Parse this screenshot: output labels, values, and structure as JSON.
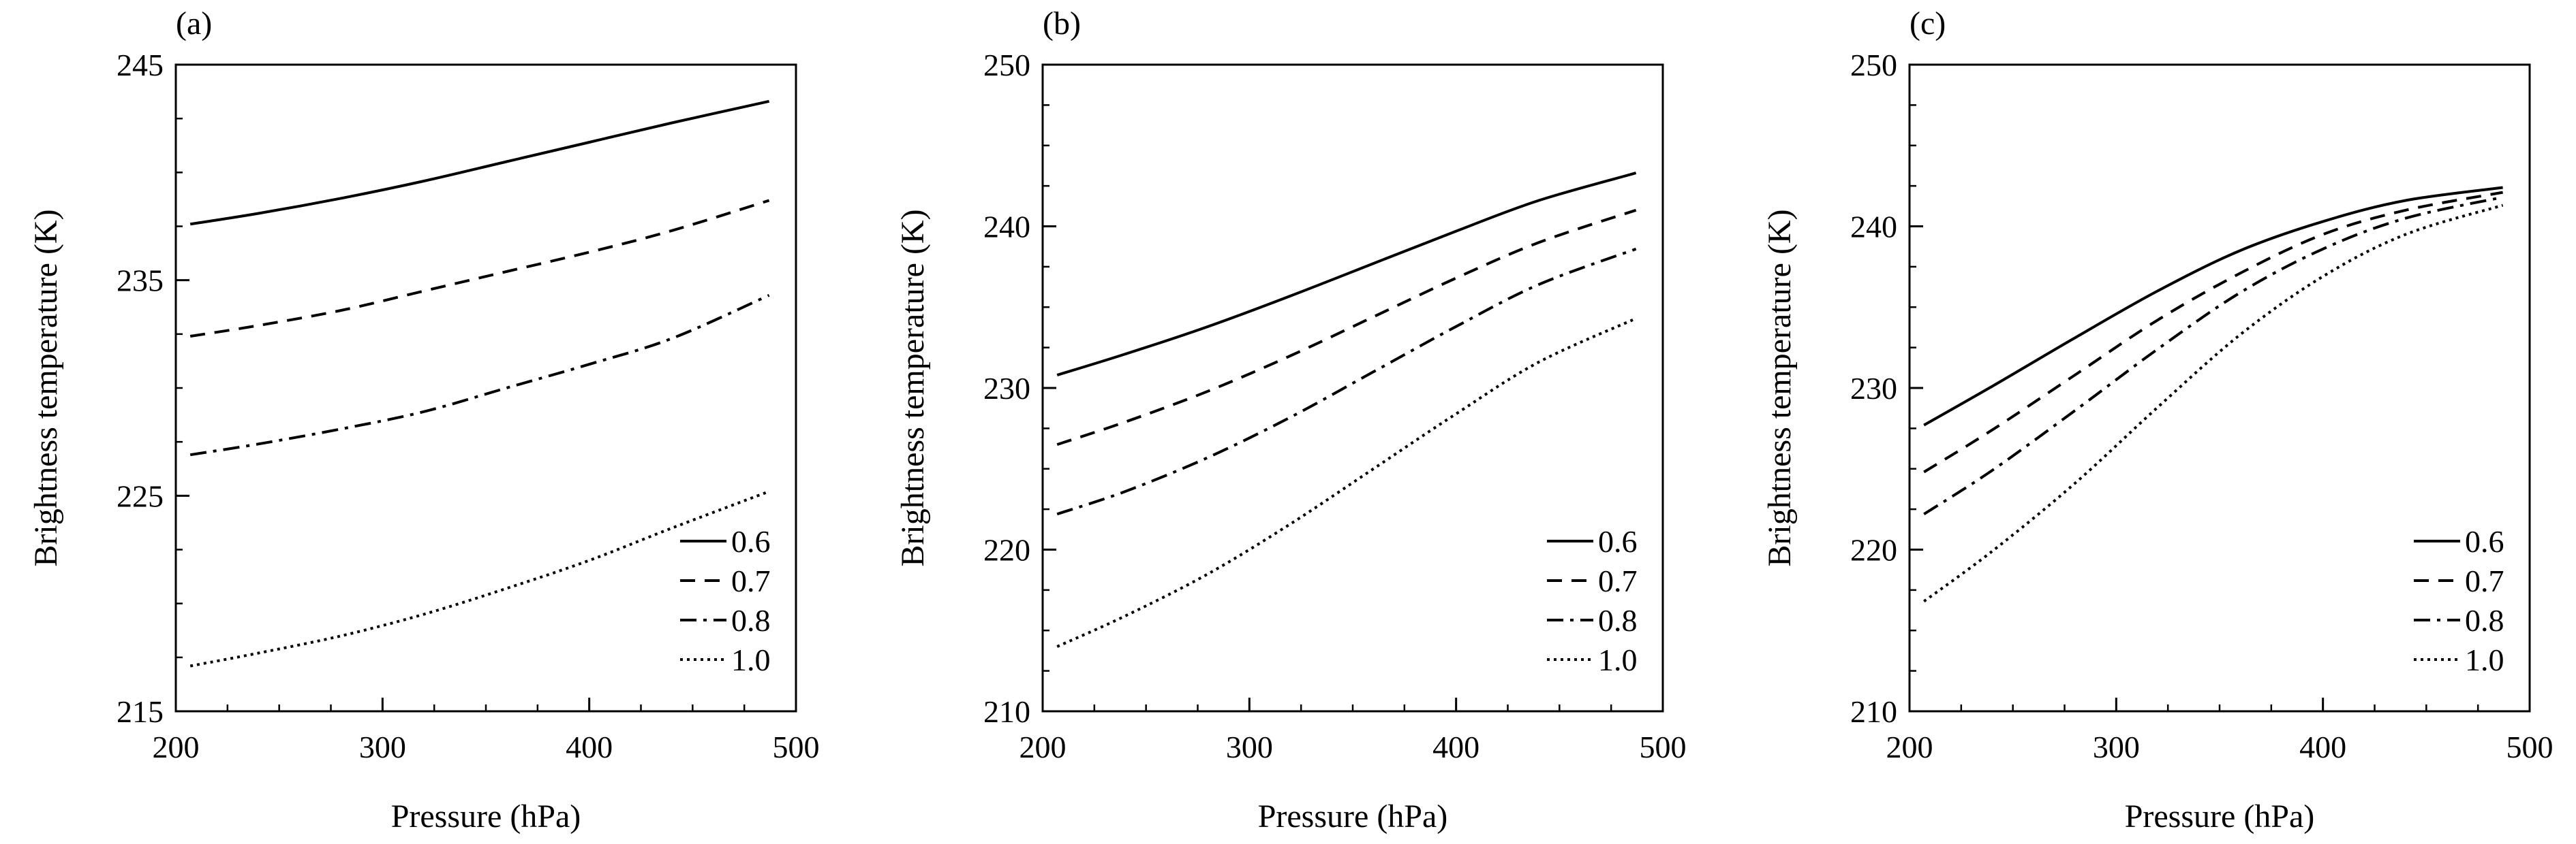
{
  "chart_data": [
    {
      "type": "line",
      "panel_label": "(a)",
      "xlabel": "Pressure (hPa)",
      "ylabel": "Brightness temperature (K)",
      "xlim": [
        200,
        500
      ],
      "ylim": [
        215,
        245
      ],
      "xticks": [
        200,
        300,
        400,
        500
      ],
      "yticks": [
        215,
        225,
        235,
        245
      ],
      "x_minor_step": 25,
      "y_minor_step": 2.5,
      "legend_position": "bottom-right",
      "x": [
        207,
        240,
        280,
        320,
        360,
        400,
        440,
        487
      ],
      "series": [
        {
          "name": "0.6",
          "dash": "solid",
          "values": [
            237.6,
            238.1,
            238.8,
            239.6,
            240.5,
            241.4,
            242.3,
            243.3
          ]
        },
        {
          "name": "0.7",
          "dash": "dashed",
          "values": [
            232.4,
            232.9,
            233.6,
            234.5,
            235.4,
            236.3,
            237.3,
            238.7
          ]
        },
        {
          "name": "0.8",
          "dash": "dashdot",
          "values": [
            226.9,
            227.4,
            228.1,
            228.9,
            230.0,
            231.1,
            232.3,
            234.3
          ]
        },
        {
          "name": "1.0",
          "dash": "dotted",
          "values": [
            217.1,
            217.7,
            218.5,
            219.5,
            220.7,
            222.0,
            223.5,
            225.2
          ]
        }
      ]
    },
    {
      "type": "line",
      "panel_label": "(b)",
      "xlabel": "Pressure (hPa)",
      "ylabel": "Brightness temperature (K)",
      "xlim": [
        200,
        500
      ],
      "ylim": [
        210,
        250
      ],
      "xticks": [
        200,
        300,
        400,
        500
      ],
      "yticks": [
        210,
        220,
        230,
        240,
        250
      ],
      "x_minor_step": 25,
      "y_minor_step": 2.5,
      "legend_position": "bottom-right",
      "x": [
        207,
        240,
        280,
        320,
        360,
        400,
        440,
        487
      ],
      "series": [
        {
          "name": "0.6",
          "dash": "solid",
          "values": [
            230.8,
            232.1,
            233.8,
            235.7,
            237.7,
            239.7,
            241.6,
            243.3
          ]
        },
        {
          "name": "0.7",
          "dash": "dashed",
          "values": [
            226.5,
            227.9,
            229.8,
            232.0,
            234.4,
            236.8,
            239.0,
            241.0
          ]
        },
        {
          "name": "0.8",
          "dash": "dashdot",
          "values": [
            222.2,
            223.6,
            225.7,
            228.2,
            231.0,
            233.8,
            236.4,
            238.6
          ]
        },
        {
          "name": "1.0",
          "dash": "dotted",
          "values": [
            214.0,
            215.9,
            218.5,
            221.6,
            225.0,
            228.4,
            231.6,
            234.3
          ]
        }
      ]
    },
    {
      "type": "line",
      "panel_label": "(c)",
      "xlabel": "Pressure (hPa)",
      "ylabel": "Brightness temperature (K)",
      "xlim": [
        200,
        500
      ],
      "ylim": [
        210,
        250
      ],
      "xticks": [
        200,
        300,
        400,
        500
      ],
      "yticks": [
        210,
        220,
        230,
        240,
        250
      ],
      "x_minor_step": 25,
      "y_minor_step": 2.5,
      "legend_position": "bottom-right",
      "x": [
        207,
        240,
        280,
        320,
        360,
        400,
        440,
        487
      ],
      "series": [
        {
          "name": "0.6",
          "dash": "solid",
          "values": [
            227.7,
            230.1,
            233.1,
            236.0,
            238.5,
            240.3,
            241.6,
            242.4
          ]
        },
        {
          "name": "0.7",
          "dash": "dashed",
          "values": [
            224.8,
            227.4,
            230.8,
            234.2,
            237.1,
            239.5,
            241.0,
            242.1
          ]
        },
        {
          "name": "0.8",
          "dash": "dashdot",
          "values": [
            222.2,
            224.9,
            228.6,
            232.4,
            235.9,
            238.6,
            240.5,
            241.8
          ]
        },
        {
          "name": "1.0",
          "dash": "dotted",
          "values": [
            216.8,
            219.9,
            224.1,
            228.8,
            233.3,
            236.9,
            239.5,
            241.3
          ]
        }
      ]
    }
  ]
}
